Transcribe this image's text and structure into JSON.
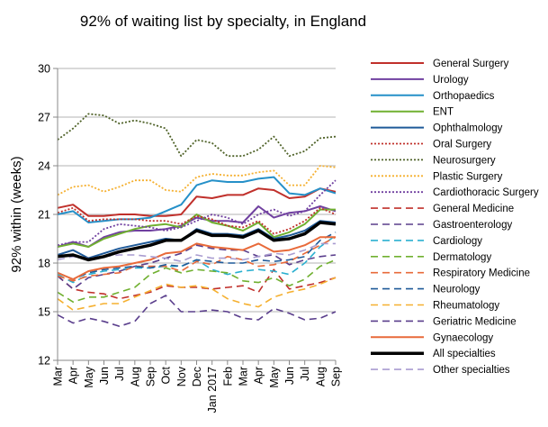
{
  "chart_data": {
    "type": "line",
    "title": "92% of waiting list by specialty, in England",
    "xlabel": "",
    "ylabel": "92% within (weeks)",
    "ylim": [
      12,
      30
    ],
    "yticks": [
      12,
      15,
      18,
      21,
      24,
      27,
      30
    ],
    "grid": true,
    "legend_position": "right",
    "x": [
      "Mar",
      "Apr",
      "May",
      "Jun",
      "Jul",
      "Aug",
      "Sep",
      "Oct",
      "Nov",
      "Dec",
      "Jan 2017",
      "Feb",
      "Mar",
      "Apr",
      "May",
      "Jun",
      "Jul",
      "Aug",
      "Sep"
    ],
    "series": [
      {
        "name": "General Surgery",
        "color": "#c0302b",
        "dash": "",
        "width": 2,
        "values": [
          21.4,
          21.6,
          20.9,
          20.9,
          21.0,
          21.0,
          20.9,
          20.9,
          21.0,
          22.1,
          22.0,
          22.2,
          22.2,
          22.6,
          22.5,
          22.0,
          22.1,
          22.6,
          22.4
        ]
      },
      {
        "name": "Urology",
        "color": "#7040a0",
        "dash": "",
        "width": 2,
        "values": [
          19.0,
          19.3,
          19.0,
          19.6,
          19.9,
          20.0,
          20.0,
          20.1,
          20.3,
          20.8,
          20.6,
          20.6,
          20.5,
          21.5,
          20.8,
          21.1,
          21.2,
          21.5,
          21.2
        ]
      },
      {
        "name": "Orthopaedics",
        "color": "#2590c8",
        "dash": "",
        "width": 2,
        "values": [
          21.0,
          21.2,
          20.5,
          20.6,
          20.7,
          20.7,
          20.8,
          21.2,
          21.6,
          22.8,
          23.1,
          23.0,
          23.0,
          23.2,
          23.3,
          22.3,
          22.2,
          22.6,
          22.3
        ]
      },
      {
        "name": "ENT",
        "color": "#70b030",
        "dash": "",
        "width": 2,
        "values": [
          19.0,
          19.2,
          19.0,
          19.5,
          19.8,
          20.1,
          20.3,
          20.4,
          20.2,
          21.0,
          20.5,
          20.3,
          20.0,
          20.5,
          19.6,
          19.9,
          20.4,
          21.3,
          21.3
        ]
      },
      {
        "name": "Ophthalmology",
        "color": "#1f5a99",
        "dash": "",
        "width": 2,
        "values": [
          18.5,
          18.8,
          18.3,
          18.6,
          18.9,
          19.1,
          19.3,
          19.5,
          19.4,
          20.1,
          19.8,
          19.8,
          19.7,
          20.1,
          19.5,
          19.7,
          20.0,
          20.6,
          20.5
        ]
      },
      {
        "name": "Oral Surgery",
        "color": "#c0302b",
        "dash": "2,2",
        "width": 1.8,
        "values": [
          21.1,
          21.4,
          20.6,
          20.7,
          20.7,
          20.7,
          20.6,
          20.6,
          20.4,
          20.9,
          20.7,
          20.3,
          20.2,
          20.6,
          19.8,
          20.1,
          20.6,
          21.4,
          21.0
        ]
      },
      {
        "name": "Neurosurgery",
        "color": "#4f6228",
        "dash": "2,2",
        "width": 1.8,
        "values": [
          25.6,
          26.3,
          27.2,
          27.1,
          26.6,
          26.8,
          26.6,
          26.3,
          24.6,
          25.6,
          25.4,
          24.6,
          24.6,
          25.0,
          25.8,
          24.6,
          24.9,
          25.7,
          25.8
        ]
      },
      {
        "name": "Plastic Surgery",
        "color": "#f5b030",
        "dash": "2,2",
        "width": 1.8,
        "values": [
          22.2,
          22.7,
          22.8,
          22.4,
          22.7,
          23.1,
          23.1,
          22.5,
          22.4,
          23.3,
          23.5,
          23.4,
          23.4,
          23.6,
          23.7,
          22.8,
          22.8,
          24.0,
          23.9
        ]
      },
      {
        "name": "Cardiothoracic Surgery",
        "color": "#7040a0",
        "dash": "2,2",
        "width": 1.8,
        "values": [
          19.1,
          19.3,
          19.3,
          20.1,
          20.4,
          20.3,
          20.2,
          20.0,
          20.2,
          20.6,
          21.0,
          20.8,
          20.4,
          21.0,
          21.3,
          20.9,
          21.2,
          22.2,
          23.1
        ]
      },
      {
        "name": "General Medicine",
        "color": "#c0302b",
        "dash": "8,5",
        "width": 1.6,
        "values": [
          17.2,
          16.4,
          16.2,
          16.1,
          15.8,
          16.0,
          16.2,
          16.6,
          16.5,
          16.5,
          16.4,
          16.5,
          16.6,
          16.2,
          17.6,
          16.4,
          16.6,
          16.8,
          17.1
        ]
      },
      {
        "name": "Gastroenterology",
        "color": "#5a3e8c",
        "dash": "8,5",
        "width": 1.6,
        "values": [
          17.2,
          16.4,
          17.1,
          17.3,
          17.5,
          17.8,
          18.0,
          18.3,
          18.6,
          19.1,
          18.9,
          18.8,
          18.8,
          18.4,
          18.5,
          17.9,
          18.2,
          18.4,
          18.5
        ]
      },
      {
        "name": "Cardiology",
        "color": "#2bb0d0",
        "dash": "8,5",
        "width": 1.6,
        "values": [
          17.3,
          16.8,
          17.3,
          17.5,
          17.6,
          17.7,
          17.7,
          17.8,
          17.8,
          18.2,
          17.6,
          17.3,
          17.5,
          17.6,
          17.5,
          17.3,
          18.0,
          19.0,
          19.7
        ]
      },
      {
        "name": "Dermatology",
        "color": "#70b030",
        "dash": "8,5",
        "width": 1.6,
        "values": [
          16.2,
          15.6,
          15.9,
          15.9,
          16.2,
          16.5,
          17.3,
          17.7,
          17.4,
          17.6,
          17.5,
          17.4,
          16.9,
          16.8,
          17.1,
          16.6,
          17.0,
          17.8,
          18.2
        ]
      },
      {
        "name": "Respiratory Medicine",
        "color": "#e86a3a",
        "dash": "8,5",
        "width": 1.6,
        "values": [
          17.2,
          16.9,
          17.2,
          17.3,
          17.4,
          17.8,
          17.8,
          17.8,
          17.5,
          18.1,
          17.9,
          18.4,
          18.2,
          17.8,
          17.9,
          18.1,
          18.6,
          19.1,
          19.6
        ]
      },
      {
        "name": "Neurology",
        "color": "#1f5a99",
        "dash": "8,5",
        "width": 1.6,
        "values": [
          17.4,
          17.0,
          17.4,
          17.6,
          17.7,
          17.8,
          17.7,
          17.9,
          17.8,
          18.2,
          18.1,
          18.0,
          18.0,
          18.2,
          18.1,
          18.2,
          18.4,
          19.4,
          19.9
        ]
      },
      {
        "name": "Rheumatology",
        "color": "#f5b030",
        "dash": "8,5",
        "width": 1.6,
        "values": [
          15.8,
          15.1,
          15.3,
          15.5,
          15.5,
          15.9,
          16.3,
          16.7,
          16.5,
          16.6,
          16.4,
          15.8,
          15.5,
          15.3,
          15.9,
          16.2,
          16.4,
          16.7,
          17.1
        ]
      },
      {
        "name": "Geriatric Medicine",
        "color": "#5a3e8c",
        "dash": "8,5",
        "width": 1.6,
        "values": [
          14.8,
          14.3,
          14.6,
          14.4,
          14.1,
          14.4,
          15.5,
          16.0,
          15.0,
          15.0,
          15.1,
          15.0,
          14.6,
          14.5,
          15.2,
          14.9,
          14.5,
          14.6,
          15.0
        ]
      },
      {
        "name": "Gynaecology",
        "color": "#e86a3a",
        "dash": "",
        "width": 2,
        "values": [
          17.4,
          17.0,
          17.5,
          17.7,
          17.8,
          18.0,
          18.2,
          18.6,
          18.7,
          19.2,
          19.0,
          18.9,
          18.8,
          19.2,
          18.7,
          18.8,
          19.1,
          19.6,
          19.6
        ]
      },
      {
        "name": "All specialties",
        "color": "#000000",
        "dash": "",
        "width": 3.5,
        "values": [
          18.4,
          18.5,
          18.2,
          18.4,
          18.7,
          18.9,
          19.1,
          19.4,
          19.4,
          20.0,
          19.7,
          19.7,
          19.6,
          20.0,
          19.4,
          19.5,
          19.8,
          20.5,
          20.4
        ]
      },
      {
        "name": "Other specialties",
        "color": "#a99cd0",
        "dash": "8,5",
        "width": 1.6,
        "values": [
          18.2,
          18.4,
          18.3,
          18.4,
          18.5,
          18.5,
          18.4,
          18.3,
          18.1,
          18.5,
          18.3,
          18.3,
          18.2,
          18.4,
          18.6,
          18.5,
          18.8,
          19.2,
          19.2
        ]
      }
    ]
  }
}
